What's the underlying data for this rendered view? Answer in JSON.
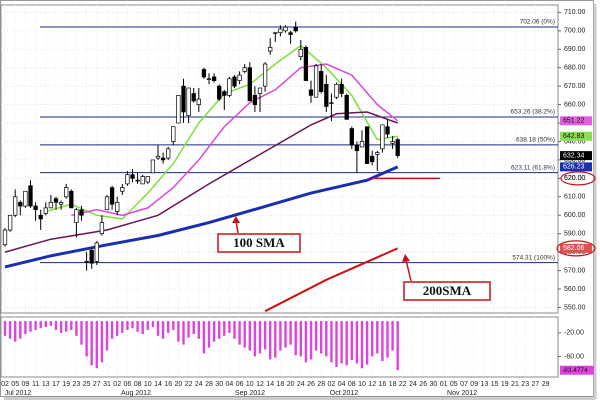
{
  "chart_data": {
    "type": "candlestick",
    "categories": [
      "2012-07-02",
      "2012-07-03",
      "2012-07-05",
      "2012-07-06",
      "2012-07-09",
      "2012-07-10",
      "2012-07-11",
      "2012-07-12",
      "2012-07-13",
      "2012-07-16",
      "2012-07-17",
      "2012-07-18",
      "2012-07-19",
      "2012-07-20",
      "2012-07-23",
      "2012-07-24",
      "2012-07-25",
      "2012-07-26",
      "2012-07-27",
      "2012-07-30",
      "2012-07-31",
      "2012-08-01",
      "2012-08-02",
      "2012-08-03",
      "2012-08-06",
      "2012-08-07",
      "2012-08-08",
      "2012-08-09",
      "2012-08-10",
      "2012-08-13",
      "2012-08-14",
      "2012-08-15",
      "2012-08-16",
      "2012-08-17",
      "2012-08-20",
      "2012-08-21",
      "2012-08-22",
      "2012-08-23",
      "2012-08-24",
      "2012-08-27",
      "2012-08-28",
      "2012-08-29",
      "2012-08-30",
      "2012-08-31",
      "2012-09-04",
      "2012-09-05",
      "2012-09-06",
      "2012-09-07",
      "2012-09-10",
      "2012-09-11",
      "2012-09-12",
      "2012-09-13",
      "2012-09-14",
      "2012-09-17",
      "2012-09-18",
      "2012-09-19",
      "2012-09-20",
      "2012-09-21",
      "2012-09-24",
      "2012-09-25",
      "2012-09-26",
      "2012-09-27",
      "2012-09-28",
      "2012-10-01",
      "2012-10-02",
      "2012-10-03",
      "2012-10-04",
      "2012-10-05",
      "2012-10-08",
      "2012-10-09",
      "2012-10-10",
      "2012-10-11",
      "2012-10-12",
      "2012-10-15",
      "2012-10-16",
      "2012-10-17",
      "2012-10-18",
      "2012-10-19"
    ],
    "open": [
      584,
      592,
      600,
      607,
      605,
      616,
      605,
      600,
      601,
      604,
      609,
      606,
      610,
      613,
      596,
      603,
      575,
      581,
      575,
      590,
      603,
      615,
      602,
      613,
      617,
      622,
      619,
      617,
      618,
      623,
      631,
      631,
      631,
      640,
      650,
      670,
      654,
      666,
      660,
      679,
      674,
      675,
      670,
      667,
      665,
      675,
      673,
      678,
      680,
      665,
      666,
      670,
      689,
      699,
      699,
      700,
      699,
      702,
      686,
      691,
      668,
      664,
      678,
      671,
      661,
      664,
      671,
      665,
      647,
      638,
      637,
      648,
      632,
      633,
      636,
      648,
      639,
      641
    ],
    "high": [
      593,
      600,
      614,
      608,
      613,
      619,
      607,
      603,
      607,
      611,
      610,
      608,
      617,
      614,
      604,
      605,
      580,
      582,
      586,
      600,
      611,
      616,
      610,
      617,
      624,
      625,
      623,
      622,
      621,
      630,
      638,
      634,
      637,
      648,
      665,
      674,
      669,
      669,
      669,
      680,
      677,
      677,
      671,
      668,
      675,
      676,
      678,
      682,
      683,
      670,
      669,
      683,
      696,
      699,
      703,
      703,
      700,
      705,
      695,
      692,
      673,
      682,
      682,
      676,
      666,
      672,
      674,
      666,
      648,
      640,
      646,
      648,
      635,
      635,
      649,
      652,
      643,
      642
    ],
    "low": [
      583,
      591,
      599,
      600,
      604,
      604,
      597,
      592,
      600,
      604,
      603,
      603,
      609,
      604,
      588,
      597,
      570,
      571,
      573,
      589,
      603,
      603,
      600,
      611,
      616,
      618,
      617,
      617,
      617,
      623,
      630,
      628,
      630,
      638,
      650,
      650,
      650,
      661,
      656,
      674,
      671,
      672,
      662,
      657,
      664,
      669,
      671,
      677,
      662,
      656,
      656,
      667,
      687,
      694,
      697,
      699,
      693,
      699,
      684,
      673,
      661,
      664,
      666,
      656,
      651,
      663,
      664,
      652,
      636,
      623,
      637,
      628,
      627,
      624,
      634,
      642,
      636,
      631
    ],
    "close": [
      592,
      600,
      610,
      605,
      613,
      605,
      603,
      598,
      604,
      607,
      607,
      607,
      615,
      604,
      603,
      600,
      575,
      574,
      585,
      596,
      610,
      606,
      607,
      615,
      622,
      620,
      619,
      621,
      621,
      630,
      632,
      630,
      636,
      648,
      665,
      656,
      669,
      662,
      663,
      675,
      674,
      673,
      663,
      665,
      674,
      670,
      676,
      680,
      662,
      660,
      669,
      682,
      691,
      699,
      701,
      702,
      698,
      700,
      690,
      673,
      665,
      681,
      667,
      659,
      661,
      671,
      666,
      652,
      638,
      635,
      640,
      628,
      629,
      634,
      649,
      644,
      640,
      632.34
    ],
    "xtick_labels": [
      "02",
      "05",
      "09",
      "11",
      "13",
      "17",
      "19",
      "23",
      "25",
      "27",
      "31",
      "02",
      "06",
      "08",
      "10",
      "14",
      "16",
      "20",
      "22",
      "24",
      "28",
      "30",
      "04",
      "06",
      "10",
      "12",
      "14",
      "18",
      "20",
      "24",
      "26",
      "28",
      "02",
      "04",
      "08",
      "10",
      "12",
      "16",
      "18",
      "22",
      "24",
      "26",
      "30",
      "01",
      "05",
      "07",
      "09",
      "13",
      "15",
      "19",
      "21",
      "23",
      "27",
      "29"
    ],
    "month_labels": [
      "Jul 2012",
      "Aug 2012",
      "Sep 2012",
      "Oct 2012",
      "Nov 2012"
    ],
    "ylim": [
      547,
      714
    ],
    "yticks": [
      {
        "value": 550,
        "label": "550.00"
      },
      {
        "value": 560,
        "label": "560.00"
      },
      {
        "value": 570,
        "label": "570.00"
      },
      {
        "value": 580,
        "label": "580.00"
      },
      {
        "value": 590,
        "label": "590.00"
      },
      {
        "value": 600,
        "label": "600.00"
      },
      {
        "value": 610,
        "label": "610.00"
      },
      {
        "value": 620,
        "label": "620.00"
      },
      {
        "value": 630,
        "label": "630.00"
      },
      {
        "value": 640,
        "label": "640.00"
      },
      {
        "value": 650,
        "label": "650.00"
      },
      {
        "value": 660,
        "label": "660.00"
      },
      {
        "value": 670,
        "label": "670.00"
      },
      {
        "value": 680,
        "label": "680.00"
      },
      {
        "value": 690,
        "label": "690.00"
      },
      {
        "value": 700,
        "label": "700.00"
      },
      {
        "value": 710,
        "label": "710.00"
      }
    ],
    "grid": true,
    "fib_levels": [
      {
        "value": 702.06,
        "label": "702.06 (0%)"
      },
      {
        "value": 653.26,
        "label": "653.26 (38.2%)"
      },
      {
        "value": 638.18,
        "label": "638.18 (50%)"
      },
      {
        "value": 623.11,
        "label": "623.11 (61.8%)"
      },
      {
        "value": 574.31,
        "label": "574.31 (100%)"
      }
    ],
    "lines": [
      {
        "color": "#7de03a",
        "x": [
          "2012-07-13",
          "2012-07-20",
          "2012-07-27",
          "2012-08-03",
          "2012-08-10",
          "2012-08-17",
          "2012-08-24",
          "2012-08-31",
          "2012-09-10",
          "2012-09-17",
          "2012-09-24",
          "2012-10-01",
          "2012-10-08",
          "2012-10-15",
          "2012-10-19"
        ],
        "values": [
          602,
          606,
          600,
          598,
          612,
          628,
          650,
          666,
          671,
          682,
          692,
          680,
          665,
          641,
          642.83
        ]
      },
      {
        "color": "#dd44dd",
        "x": [
          "2012-07-20",
          "2012-07-27",
          "2012-08-03",
          "2012-08-10",
          "2012-08-17",
          "2012-08-24",
          "2012-08-31",
          "2012-09-10",
          "2012-09-17",
          "2012-09-24",
          "2012-10-01",
          "2012-10-08",
          "2012-10-15",
          "2012-10-19"
        ],
        "values": [
          600,
          603,
          600,
          604,
          615,
          630,
          648,
          661,
          668,
          680,
          682,
          676,
          660,
          651.22
        ]
      },
      {
        "color": "#6a1458",
        "x": [
          "2012-07-02",
          "2012-07-16",
          "2012-07-31",
          "2012-08-14",
          "2012-08-28",
          "2012-09-12",
          "2012-09-26",
          "2012-10-03",
          "2012-10-11",
          "2012-10-19"
        ],
        "values": [
          580,
          587,
          592,
          600,
          617,
          633,
          649,
          655,
          656,
          650
        ]
      },
      {
        "color": "#1a2fb0",
        "x": [
          "2012-07-02",
          "2012-07-16",
          "2012-07-31",
          "2012-08-14",
          "2012-08-28",
          "2012-09-12",
          "2012-09-26",
          "2012-10-11",
          "2012-10-19"
        ],
        "values": [
          572,
          578,
          584,
          589,
          596,
          604,
          612,
          619,
          626.23
        ]
      },
      {
        "color": "#cc1111",
        "x": [
          "2012-09-13",
          "2012-10-01",
          "2012-10-19"
        ],
        "values": [
          548,
          565,
          582.06
        ]
      }
    ],
    "support_line": {
      "value": 620,
      "label": "620.00"
    },
    "price_tags": [
      {
        "value": 651.22,
        "label": "651.22",
        "color": "#e060e0"
      },
      {
        "value": 642.83,
        "label": "642.83",
        "color": "#88e050"
      },
      {
        "value": 632.34,
        "label": "632.34",
        "color": "#000000"
      },
      {
        "value": 626.23,
        "label": "626.23",
        "color": "#1a2fb0"
      },
      {
        "value": 582.06,
        "label": "582.06",
        "color": "#e05050"
      }
    ],
    "annotations": [
      {
        "label": "100 SMA"
      },
      {
        "label": "200SMA"
      }
    ],
    "histogram": {
      "color": "#dd44dd",
      "ylim": [
        -95,
        7
      ],
      "yticks": [
        {
          "value": -20,
          "label": "-20.00"
        },
        {
          "value": -60,
          "label": "-60.00"
        }
      ],
      "values": [
        -25,
        -30,
        -35,
        -30,
        -22,
        -18,
        -15,
        -12,
        -10,
        -8,
        -15,
        -20,
        -18,
        -15,
        -25,
        -40,
        -60,
        -75,
        -80,
        -70,
        -50,
        -30,
        -25,
        -20,
        -15,
        -12,
        -18,
        -22,
        -15,
        -10,
        -25,
        -30,
        -20,
        -15,
        -35,
        -40,
        -28,
        -22,
        -30,
        -55,
        -45,
        -35,
        -30,
        -25,
        -20,
        -30,
        -40,
        -45,
        -50,
        -60,
        -55,
        -48,
        -65,
        -62,
        -50,
        -45,
        -40,
        -58,
        -60,
        -70,
        -65,
        -50,
        -55,
        -60,
        -70,
        -78,
        -72,
        -75,
        -66,
        -72,
        -80,
        -74,
        -60,
        -55,
        -68,
        -62,
        -50,
        -83.4774
      ],
      "tag": {
        "value": -83.4774,
        "label": "-83.4774"
      }
    }
  }
}
